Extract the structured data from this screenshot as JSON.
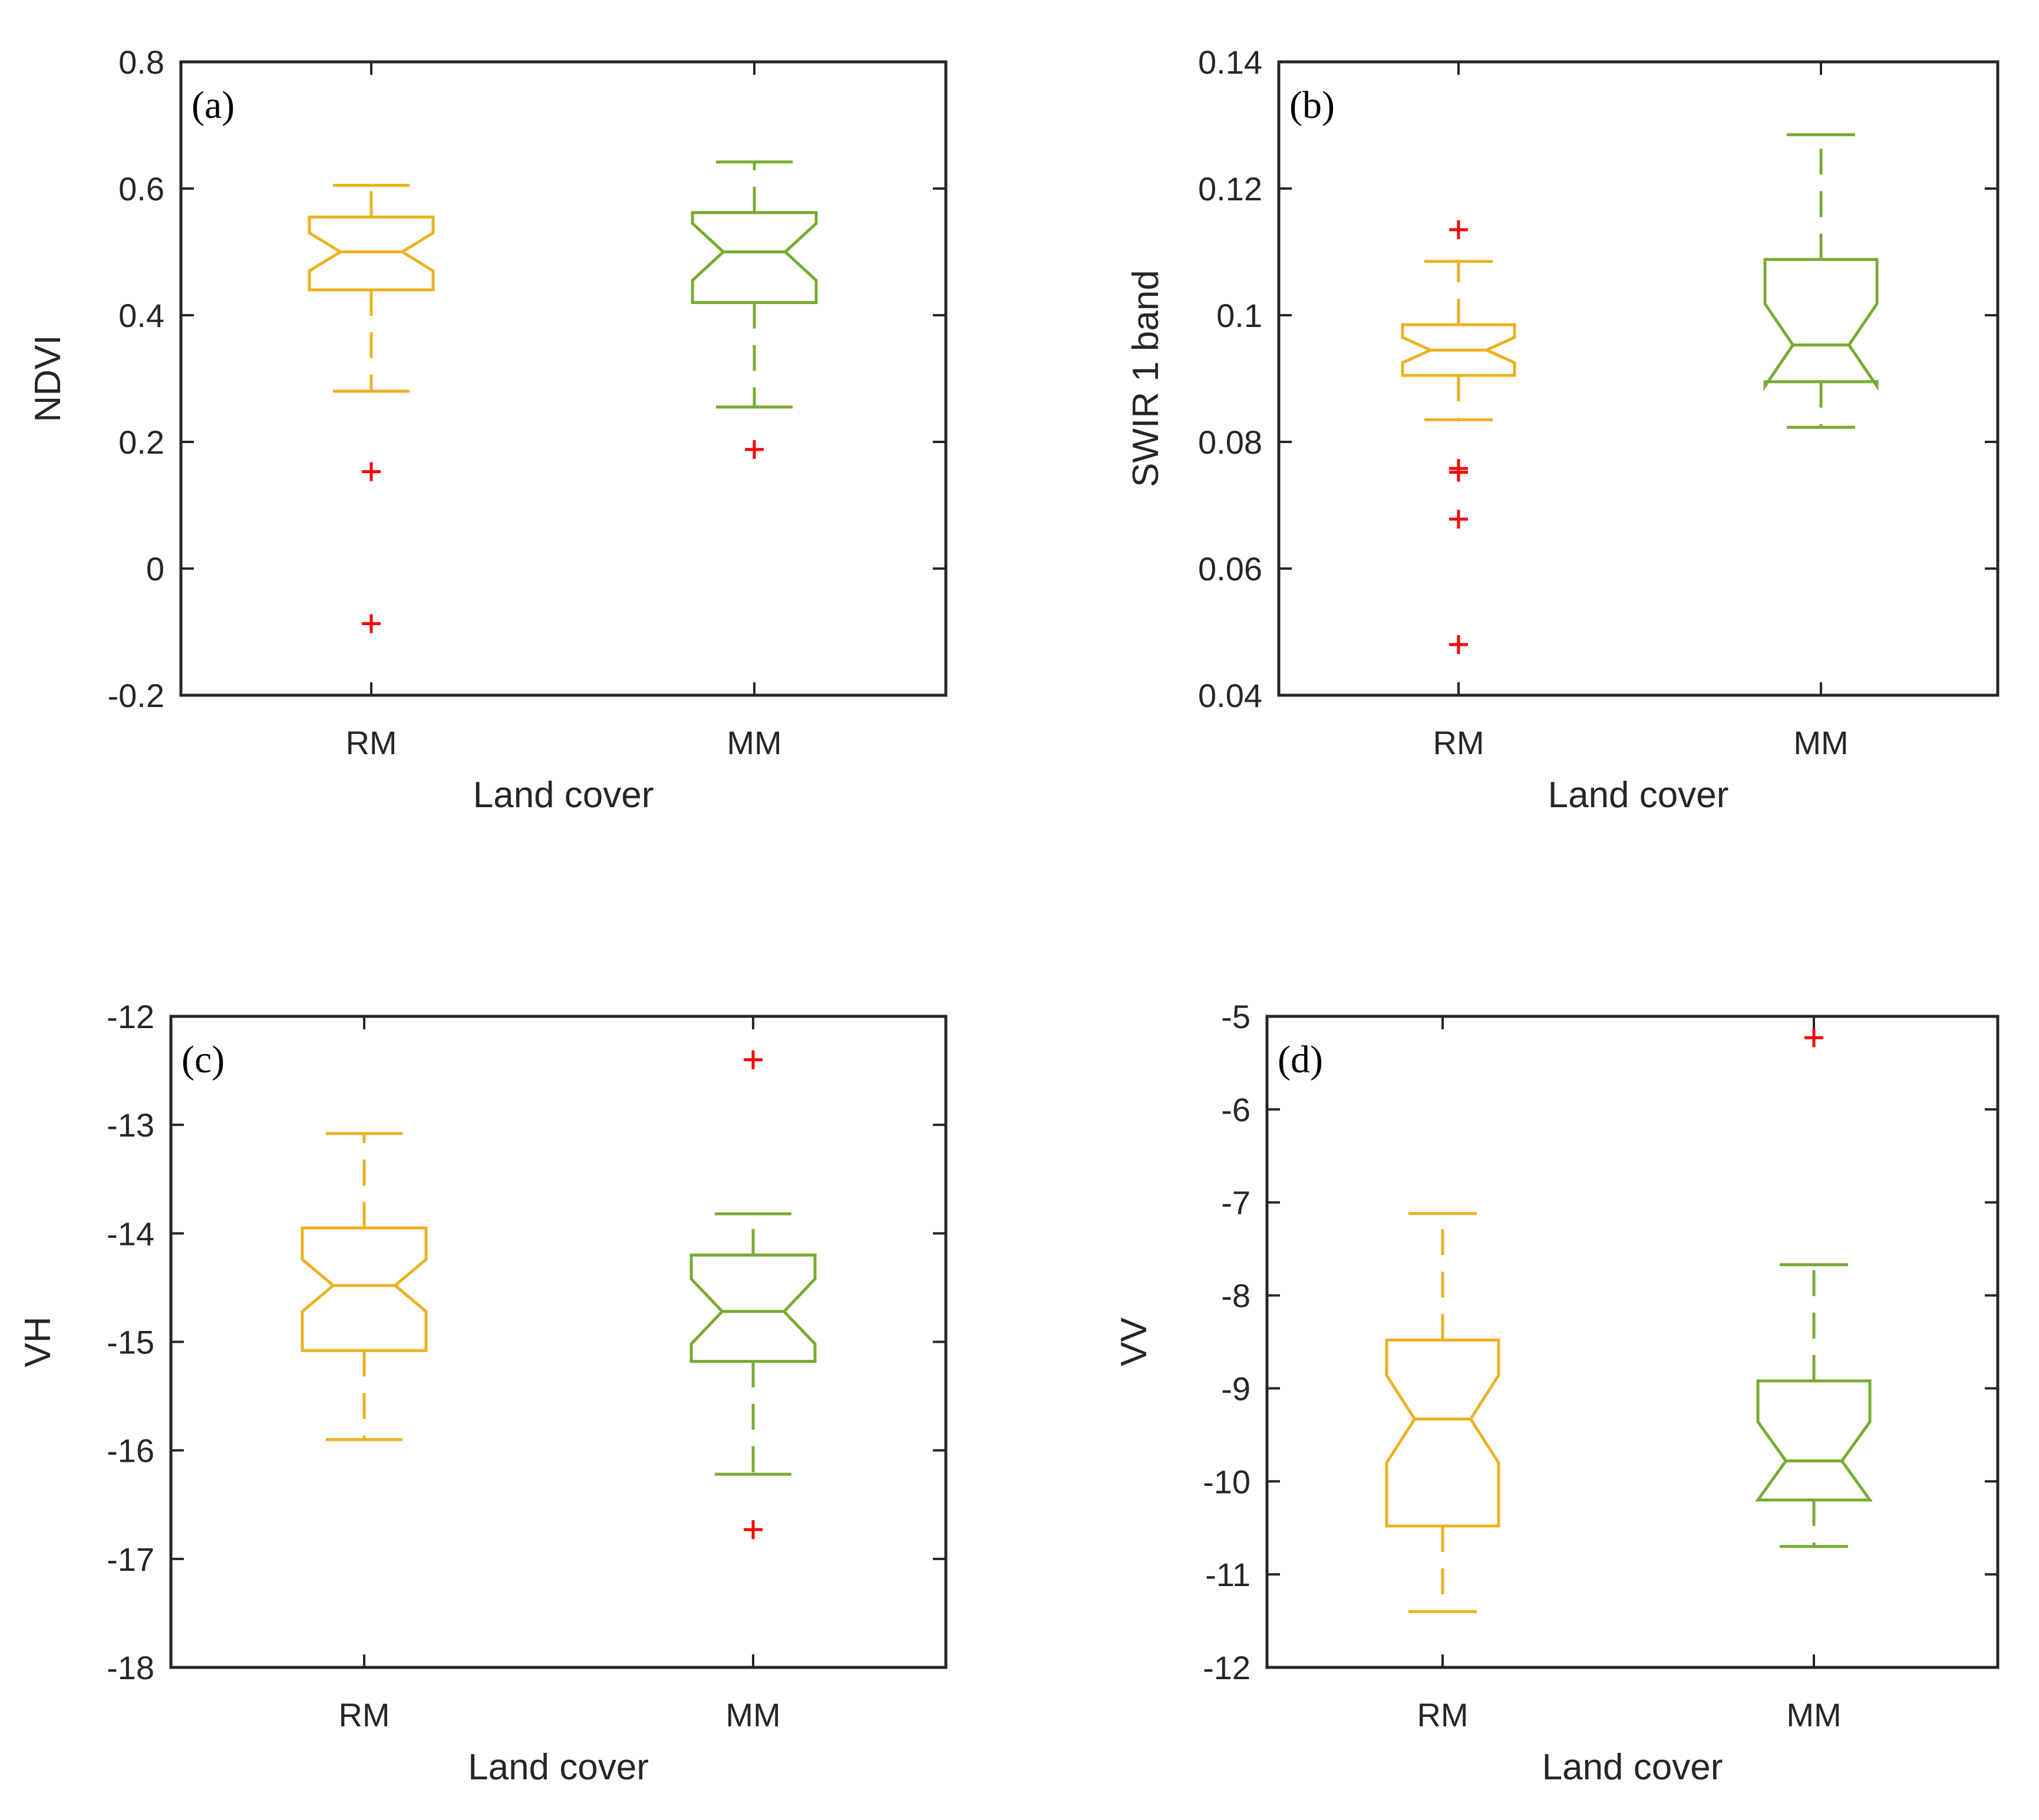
{
  "chart_data": [
    {
      "type": "boxplot",
      "panel_label": "(a)",
      "categories": [
        "RM",
        "MM"
      ],
      "xlabel": "Land cover",
      "ylabel": "NDVI",
      "ylim": [
        -0.2,
        0.8
      ],
      "yticks": [
        -0.2,
        0,
        0.2,
        0.4,
        0.6,
        0.8
      ],
      "ytick_labels": [
        "-0.2",
        "0",
        "0.2",
        "0.4",
        "0.6",
        "0.8"
      ],
      "notched": true,
      "boxes": [
        {
          "category": "RM",
          "whisker_low": 0.28,
          "q1": 0.44,
          "median": 0.5,
          "q3": 0.555,
          "whisker_high": 0.605,
          "notch_low": 0.47,
          "notch_high": 0.53,
          "outliers": [
            0.153,
            -0.087
          ],
          "color": "#EDB120"
        },
        {
          "category": "MM",
          "whisker_low": 0.255,
          "q1": 0.42,
          "median": 0.5,
          "q3": 0.562,
          "whisker_high": 0.642,
          "notch_low": 0.455,
          "notch_high": 0.545,
          "outliers": [
            0.188
          ],
          "color": "#77AC30"
        }
      ]
    },
    {
      "type": "boxplot",
      "panel_label": "(b)",
      "categories": [
        "RM",
        "MM"
      ],
      "xlabel": "Land cover",
      "ylabel": "SWIR 1 band",
      "ylim": [
        0.04,
        0.14
      ],
      "yticks": [
        0.04,
        0.06,
        0.08,
        0.1,
        0.12,
        0.14
      ],
      "ytick_labels": [
        "0.04",
        "0.06",
        "0.08",
        "0.1",
        "0.12",
        "0.14"
      ],
      "notched": true,
      "boxes": [
        {
          "category": "RM",
          "whisker_low": 0.0835,
          "q1": 0.0905,
          "median": 0.0945,
          "q3": 0.0985,
          "whisker_high": 0.1085,
          "notch_low": 0.0925,
          "notch_high": 0.0965,
          "outliers": [
            0.1135,
            0.0758,
            0.0752,
            0.0678,
            0.048
          ],
          "color": "#EDB120"
        },
        {
          "category": "MM",
          "whisker_low": 0.0823,
          "q1": 0.0895,
          "median": 0.0953,
          "q3": 0.1088,
          "whisker_high": 0.1285,
          "notch_low": 0.0888,
          "notch_high": 0.1018,
          "outliers": [],
          "color": "#77AC30"
        }
      ]
    },
    {
      "type": "boxplot",
      "panel_label": "(c)",
      "categories": [
        "RM",
        "MM"
      ],
      "xlabel": "Land cover",
      "ylabel": "VH",
      "ylim": [
        -18,
        -12
      ],
      "yticks": [
        -18,
        -17,
        -16,
        -15,
        -14,
        -13,
        -12
      ],
      "ytick_labels": [
        "-18",
        "-17",
        "-16",
        "-15",
        "-14",
        "-13",
        "-12"
      ],
      "notched": true,
      "boxes": [
        {
          "category": "RM",
          "whisker_low": -15.9,
          "q1": -15.08,
          "median": -14.48,
          "q3": -13.95,
          "whisker_high": -13.08,
          "notch_low": -14.72,
          "notch_high": -14.24,
          "outliers": [],
          "color": "#EDB120"
        },
        {
          "category": "MM",
          "whisker_low": -16.22,
          "q1": -15.18,
          "median": -14.72,
          "q3": -14.2,
          "whisker_high": -13.82,
          "notch_low": -15.02,
          "notch_high": -14.42,
          "outliers": [
            -12.4,
            -16.73
          ],
          "color": "#77AC30"
        }
      ]
    },
    {
      "type": "boxplot",
      "panel_label": "(d)",
      "categories": [
        "RM",
        "MM"
      ],
      "xlabel": "Land cover",
      "ylabel": "VV",
      "ylim": [
        -12,
        -5
      ],
      "yticks": [
        -12,
        -11,
        -10,
        -9,
        -8,
        -7,
        -6,
        -5
      ],
      "ytick_labels": [
        "-12",
        "-11",
        "-10",
        "-9",
        "-8",
        "-7",
        "-6",
        "-5"
      ],
      "notched": true,
      "boxes": [
        {
          "category": "RM",
          "whisker_low": -11.4,
          "q1": -10.48,
          "median": -9.33,
          "q3": -8.48,
          "whisker_high": -7.12,
          "notch_low": -9.8,
          "notch_high": -8.86,
          "outliers": [],
          "color": "#EDB120"
        },
        {
          "category": "MM",
          "whisker_low": -10.7,
          "q1": -10.2,
          "median": -9.78,
          "q3": -8.92,
          "whisker_high": -7.67,
          "notch_low": -10.2,
          "notch_high": -9.36,
          "outliers": [
            -5.23
          ],
          "color": "#77AC30"
        }
      ]
    }
  ],
  "colors": {
    "outlier": "#FF0000",
    "axes": "#262626"
  }
}
